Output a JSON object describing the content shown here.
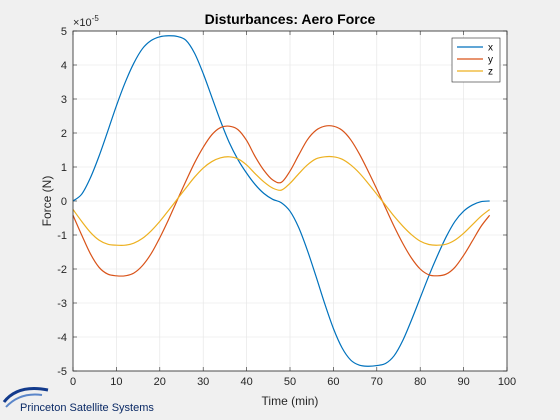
{
  "chart_data": {
    "type": "line",
    "title": "Disturbances: Aero Force",
    "xlabel": "Time (min)",
    "ylabel": "Force (N)",
    "y_exponent_label": "×10",
    "y_exponent_power": "-5",
    "xlim": [
      0,
      100
    ],
    "ylim": [
      -5,
      5
    ],
    "xticks": [
      0,
      10,
      20,
      30,
      40,
      50,
      60,
      70,
      80,
      90,
      100
    ],
    "yticks": [
      -5,
      -4,
      -3,
      -2,
      -1,
      0,
      1,
      2,
      3,
      4,
      5
    ],
    "grid": true,
    "legend_position": "top-right",
    "series": [
      {
        "name": "x",
        "color": "#0072BD",
        "x": [
          0,
          2,
          4,
          6,
          8,
          10,
          12,
          14,
          16,
          18,
          20,
          22,
          24,
          26,
          28,
          30,
          32,
          34,
          36,
          38,
          40,
          42,
          44,
          46,
          48,
          50,
          52,
          54,
          56,
          58,
          60,
          62,
          64,
          66,
          68,
          70,
          72,
          74,
          76,
          78,
          80,
          82,
          84,
          86,
          88,
          90,
          92,
          94,
          96
        ],
        "y": [
          0,
          0.2,
          0.68,
          1.32,
          2.05,
          2.8,
          3.48,
          4.05,
          4.48,
          4.72,
          4.83,
          4.86,
          4.84,
          4.73,
          4.35,
          3.75,
          3.05,
          2.35,
          1.72,
          1.22,
          0.82,
          0.48,
          0.22,
          0.05,
          -0.05,
          -0.3,
          -0.78,
          -1.45,
          -2.22,
          -3.02,
          -3.75,
          -4.32,
          -4.68,
          -4.83,
          -4.86,
          -4.84,
          -4.78,
          -4.55,
          -4.1,
          -3.5,
          -2.85,
          -2.2,
          -1.6,
          -1.05,
          -0.6,
          -0.3,
          -0.12,
          -0.02,
          0
        ]
      },
      {
        "name": "y",
        "color": "#D95319",
        "x": [
          0,
          2,
          4,
          6,
          8,
          10,
          12,
          14,
          16,
          18,
          20,
          22,
          24,
          26,
          28,
          30,
          32,
          34,
          36,
          38,
          40,
          42,
          44,
          46,
          48,
          50,
          52,
          54,
          56,
          58,
          60,
          62,
          64,
          66,
          68,
          70,
          72,
          74,
          76,
          78,
          80,
          82,
          84,
          86,
          88,
          90,
          92,
          94,
          96
        ],
        "y": [
          -0.42,
          -1.0,
          -1.55,
          -1.95,
          -2.15,
          -2.2,
          -2.2,
          -2.12,
          -1.9,
          -1.55,
          -1.08,
          -0.55,
          0.02,
          0.58,
          1.12,
          1.58,
          1.95,
          2.16,
          2.2,
          2.1,
          1.78,
          1.3,
          0.9,
          0.62,
          0.55,
          0.88,
          1.35,
          1.8,
          2.08,
          2.2,
          2.2,
          2.08,
          1.8,
          1.38,
          0.88,
          0.35,
          -0.2,
          -0.75,
          -1.25,
          -1.68,
          -2.0,
          -2.17,
          -2.2,
          -2.15,
          -1.95,
          -1.6,
          -1.18,
          -0.75,
          -0.42
        ]
      },
      {
        "name": "z",
        "color": "#EDB120",
        "x": [
          0,
          2,
          4,
          6,
          8,
          10,
          12,
          14,
          16,
          18,
          20,
          22,
          24,
          26,
          28,
          30,
          32,
          34,
          36,
          38,
          40,
          42,
          44,
          46,
          48,
          50,
          52,
          54,
          56,
          58,
          60,
          62,
          64,
          66,
          68,
          70,
          72,
          74,
          76,
          78,
          80,
          82,
          84,
          86,
          88,
          90,
          92,
          94,
          96
        ],
        "y": [
          -0.25,
          -0.6,
          -0.92,
          -1.15,
          -1.27,
          -1.3,
          -1.3,
          -1.24,
          -1.1,
          -0.88,
          -0.6,
          -0.28,
          0.05,
          0.38,
          0.7,
          0.97,
          1.16,
          1.27,
          1.3,
          1.24,
          1.06,
          0.8,
          0.56,
          0.38,
          0.32,
          0.52,
          0.8,
          1.06,
          1.24,
          1.3,
          1.3,
          1.23,
          1.06,
          0.82,
          0.52,
          0.2,
          -0.12,
          -0.45,
          -0.74,
          -0.99,
          -1.18,
          -1.28,
          -1.3,
          -1.27,
          -1.15,
          -0.95,
          -0.7,
          -0.45,
          -0.25
        ]
      }
    ]
  },
  "branding": {
    "company_name": "Princeton Satellite Systems",
    "logo_icon": "satellite-swoosh-icon"
  }
}
